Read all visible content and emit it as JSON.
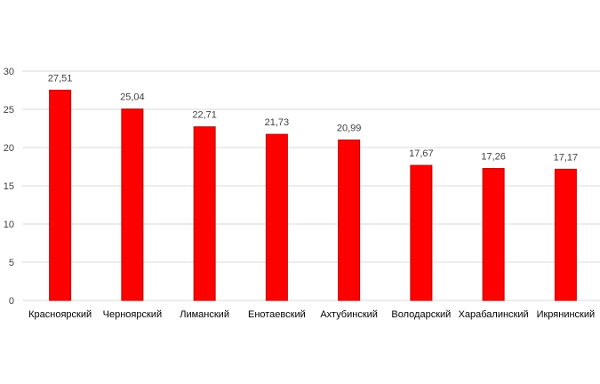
{
  "chart_data": {
    "type": "bar",
    "categories": [
      "Красноярский",
      "Черноярский",
      "Лиманский",
      "Енотаевский",
      "Ахтубинский",
      "Володарский",
      "Харабалинский",
      "Икрянинский"
    ],
    "values": [
      27.51,
      25.04,
      22.71,
      21.73,
      20.99,
      17.67,
      17.26,
      17.17
    ],
    "data_labels": [
      "27,51",
      "25,04",
      "22,71",
      "21,73",
      "20,99",
      "17,67",
      "17,26",
      "17,17"
    ],
    "y_ticks": [
      "0",
      "5",
      "10",
      "15",
      "20",
      "25",
      "30"
    ],
    "ylim": [
      0,
      30
    ],
    "grid": true,
    "legend": "none",
    "colors": {
      "bar": "#ff0000",
      "bar_edge": "#c00000",
      "grid": "#d9d9d9"
    }
  }
}
